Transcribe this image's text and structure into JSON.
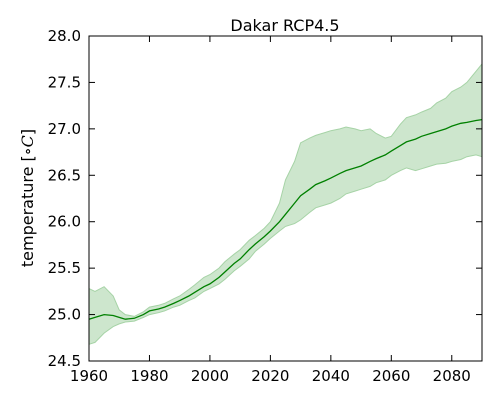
{
  "chart_data": {
    "type": "line",
    "title": "Dakar RCP4.5",
    "xlabel": "",
    "ylabel": "temperature [",
    "ylabel_unit": "∘C",
    "ylabel_close": "]",
    "xlim": [
      1960,
      2090
    ],
    "ylim": [
      24.5,
      28.0
    ],
    "x_ticks": [
      1960,
      1980,
      2000,
      2020,
      2040,
      2060,
      2080
    ],
    "x_tick_labels": [
      "1960",
      "1980",
      "2000",
      "2020",
      "2040",
      "2060",
      "2080"
    ],
    "y_ticks": [
      24.5,
      25.0,
      25.5,
      26.0,
      26.5,
      27.0,
      27.5,
      28.0
    ],
    "y_tick_labels": [
      "24.5",
      "25.0",
      "25.5",
      "26.0",
      "26.5",
      "27.0",
      "27.5",
      "28.0"
    ],
    "grid": false,
    "colors": {
      "line": "#008000",
      "band_fill": "#cde6cd",
      "band_edge": "#a6d3a6"
    },
    "series": [
      {
        "x": [
          1960,
          1962,
          1965,
          1968,
          1970,
          1972,
          1975,
          1978,
          1980,
          1983,
          1985,
          1988,
          1990,
          1993,
          1995,
          1998,
          2000,
          2003,
          2005,
          2008,
          2010,
          2013,
          2015,
          2018,
          2020,
          2023,
          2025,
          2028,
          2030,
          2033,
          2035,
          2038,
          2040,
          2043,
          2045,
          2048,
          2050,
          2053,
          2055,
          2058,
          2060,
          2063,
          2065,
          2068,
          2070,
          2073,
          2075,
          2078,
          2080,
          2083,
          2085,
          2088,
          2090
        ],
        "values": [
          24.95,
          24.97,
          25.0,
          24.99,
          24.97,
          24.95,
          24.96,
          25.0,
          25.04,
          25.06,
          25.08,
          25.12,
          25.15,
          25.2,
          25.24,
          25.3,
          25.33,
          25.4,
          25.46,
          25.55,
          25.6,
          25.7,
          25.76,
          25.84,
          25.9,
          26.0,
          26.08,
          26.2,
          26.28,
          26.35,
          26.4,
          26.44,
          26.47,
          26.52,
          26.55,
          26.58,
          26.6,
          26.65,
          26.68,
          26.72,
          26.76,
          26.82,
          26.86,
          26.89,
          26.92,
          26.95,
          26.97,
          27.0,
          27.03,
          27.06,
          27.07,
          27.09,
          27.1
        ]
      },
      {
        "x": [
          1960,
          1962,
          1965,
          1968,
          1970,
          1972,
          1975,
          1978,
          1980,
          1983,
          1985,
          1988,
          1990,
          1993,
          1995,
          1998,
          2000,
          2003,
          2005,
          2008,
          2010,
          2013,
          2015,
          2018,
          2020,
          2023,
          2025,
          2028,
          2030,
          2033,
          2035,
          2038,
          2040,
          2043,
          2045,
          2048,
          2050,
          2053,
          2055,
          2058,
          2060,
          2063,
          2065,
          2068,
          2070,
          2073,
          2075,
          2078,
          2080,
          2083,
          2085,
          2088,
          2090
        ],
        "values": [
          25.28,
          25.25,
          25.3,
          25.2,
          25.05,
          25.0,
          24.98,
          25.03,
          25.08,
          25.1,
          25.12,
          25.17,
          25.2,
          25.27,
          25.32,
          25.4,
          25.43,
          25.5,
          25.57,
          25.65,
          25.7,
          25.8,
          25.85,
          25.93,
          26.0,
          26.2,
          26.45,
          26.65,
          26.85,
          26.9,
          26.93,
          26.96,
          26.98,
          27.0,
          27.02,
          27.0,
          26.98,
          27.0,
          26.95,
          26.9,
          26.92,
          27.05,
          27.12,
          27.15,
          27.18,
          27.22,
          27.28,
          27.33,
          27.4,
          27.45,
          27.5,
          27.62,
          27.7
        ]
      },
      {
        "x": [
          1960,
          1962,
          1965,
          1968,
          1970,
          1972,
          1975,
          1978,
          1980,
          1983,
          1985,
          1988,
          1990,
          1993,
          1995,
          1998,
          2000,
          2003,
          2005,
          2008,
          2010,
          2013,
          2015,
          2018,
          2020,
          2023,
          2025,
          2028,
          2030,
          2033,
          2035,
          2038,
          2040,
          2043,
          2045,
          2048,
          2050,
          2053,
          2055,
          2058,
          2060,
          2063,
          2065,
          2068,
          2070,
          2073,
          2075,
          2078,
          2080,
          2083,
          2085,
          2088,
          2090
        ],
        "values": [
          24.68,
          24.7,
          24.8,
          24.87,
          24.9,
          24.92,
          24.93,
          24.97,
          25.0,
          25.02,
          25.04,
          25.08,
          25.1,
          25.15,
          25.18,
          25.25,
          25.28,
          25.33,
          25.38,
          25.47,
          25.52,
          25.6,
          25.68,
          25.76,
          25.82,
          25.9,
          25.95,
          25.98,
          26.02,
          26.1,
          26.15,
          26.18,
          26.2,
          26.25,
          26.3,
          26.33,
          26.35,
          26.38,
          26.42,
          26.45,
          26.5,
          26.55,
          26.58,
          26.55,
          26.57,
          26.6,
          26.62,
          26.63,
          26.65,
          26.67,
          26.7,
          26.72,
          26.7
        ]
      }
    ]
  }
}
